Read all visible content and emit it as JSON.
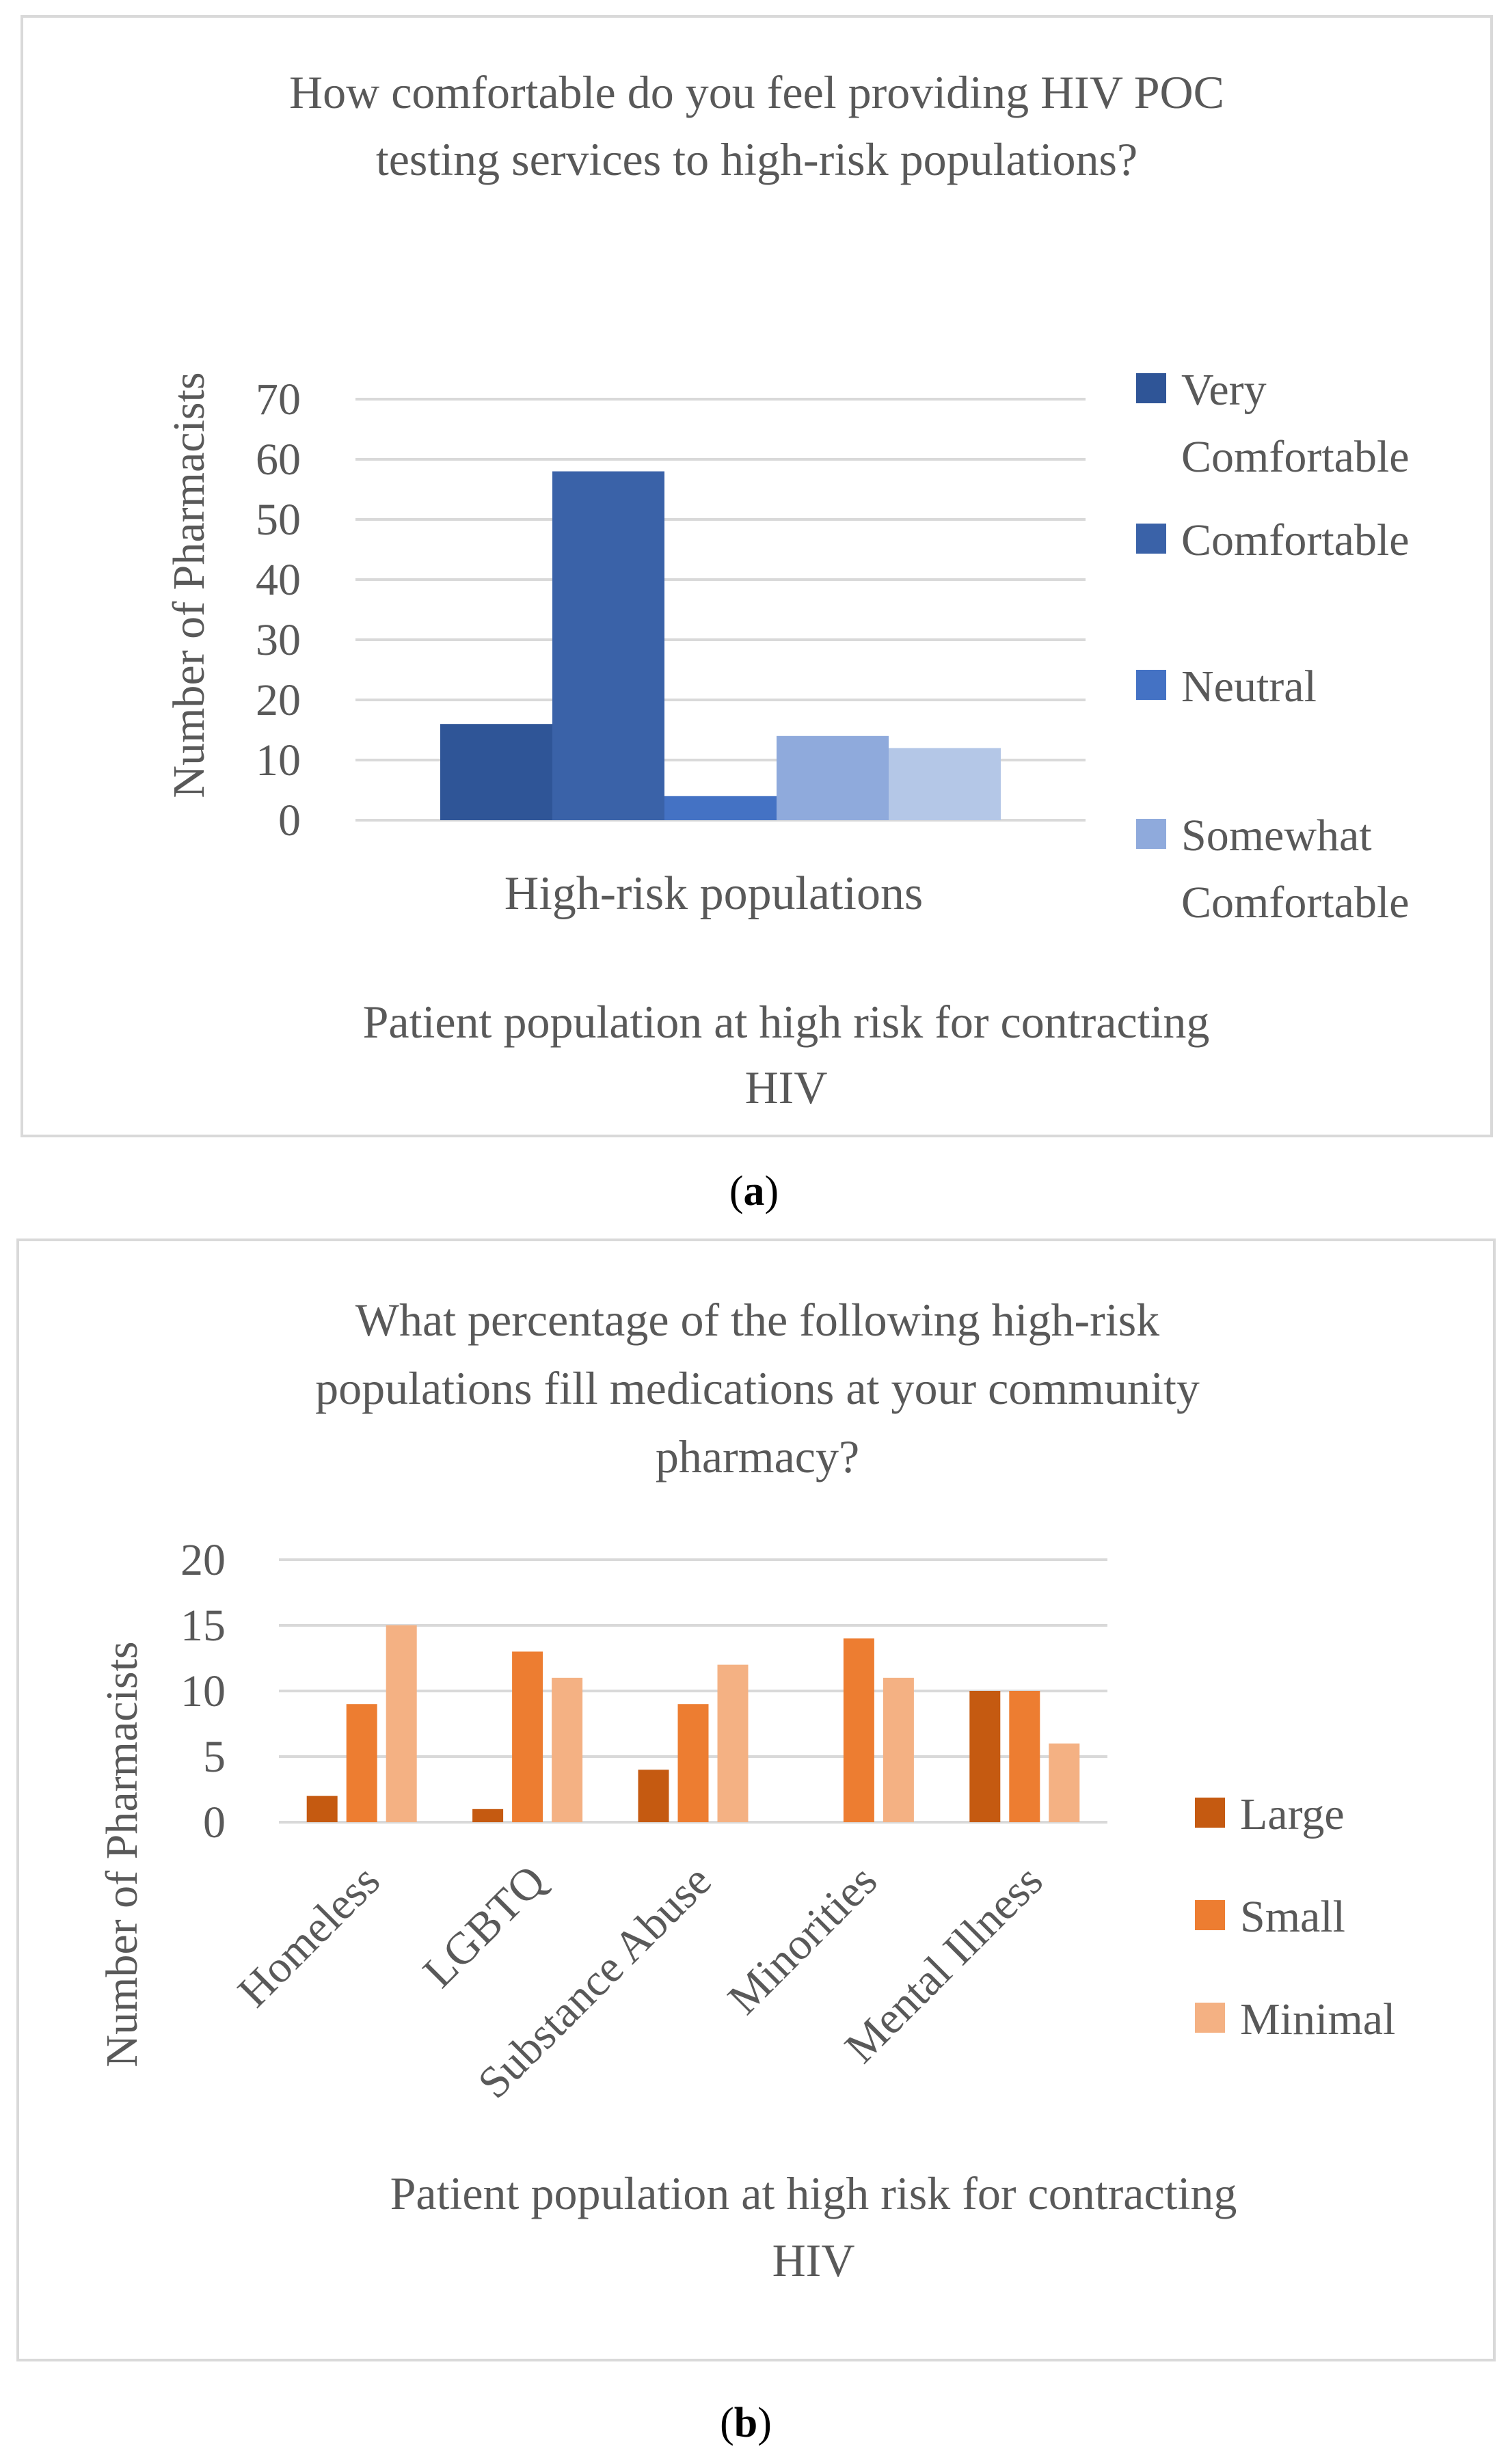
{
  "panel_labels": {
    "a": "a",
    "b": "b"
  },
  "colors": {
    "very_comfortable": "#2f5597",
    "comfortable": "#3a62a8",
    "neutral": "#4472c4",
    "somewhat_comfortable": "#8faadc",
    "uncomfortable": "#b4c7e7",
    "large": "#c55a11",
    "small": "#ed7d31",
    "minimal": "#f4b183",
    "gridline": "#d9d9d9",
    "text": "#595959"
  },
  "chart_data": [
    {
      "type": "bar",
      "title": "How comfortable do you feel providing HIV POC testing services to high-risk populations?",
      "title_lines": [
        "How comfortable do you feel providing HIV POC",
        "testing services to high-risk populations?"
      ],
      "xlabel": "Patient population at high risk for contracting HIV",
      "xlabel_lines": [
        "Patient population at high risk for contracting",
        "HIV"
      ],
      "ylabel": "Number of Pharmacists",
      "categories": [
        "High-risk populations"
      ],
      "yticks": [
        0,
        10,
        20,
        30,
        40,
        50,
        60,
        70
      ],
      "ylim": [
        0,
        70
      ],
      "grid": true,
      "legend_position": "right",
      "series": [
        {
          "name": "Very Comfortable",
          "name_lines": [
            "Very",
            "Comfortable"
          ],
          "values": [
            16
          ],
          "color": "#2f5597"
        },
        {
          "name": "Comfortable",
          "name_lines": [
            "Comfortable"
          ],
          "values": [
            58
          ],
          "color": "#3a62a8"
        },
        {
          "name": "Neutral",
          "name_lines": [
            "Neutral"
          ],
          "values": [
            4
          ],
          "color": "#4472c4"
        },
        {
          "name": "Somewhat Comfortable",
          "name_lines": [
            "Somewhat",
            "Comfortable"
          ],
          "values": [
            14
          ],
          "color": "#8faadc"
        },
        {
          "name": "",
          "name_lines": [],
          "values": [
            12
          ],
          "color": "#b4c7e7"
        }
      ]
    },
    {
      "type": "bar",
      "title": "What percentage of the following high-risk populations fill medications at your community pharmacy?",
      "title_lines": [
        "What percentage of the following high-risk",
        "populations fill medications at your community",
        "pharmacy?"
      ],
      "xlabel": "Patient population at high risk for contracting HIV",
      "xlabel_lines": [
        "Patient population at high risk for contracting",
        "HIV"
      ],
      "ylabel": "Number of Pharmacists",
      "categories": [
        "Homeless",
        "LGBTQ",
        "Substance Abuse",
        "Minorities",
        "Mental Illness"
      ],
      "yticks": [
        0,
        5,
        10,
        15,
        20
      ],
      "ylim": [
        0,
        20
      ],
      "grid": true,
      "legend_position": "right",
      "series": [
        {
          "name": "Large",
          "values": [
            2,
            1,
            4,
            0,
            10
          ],
          "color": "#c55a11"
        },
        {
          "name": "Small",
          "values": [
            9,
            13,
            9,
            14,
            10
          ],
          "color": "#ed7d31"
        },
        {
          "name": "Minimal",
          "values": [
            15,
            11,
            12,
            11,
            6
          ],
          "color": "#f4b183"
        }
      ]
    }
  ]
}
